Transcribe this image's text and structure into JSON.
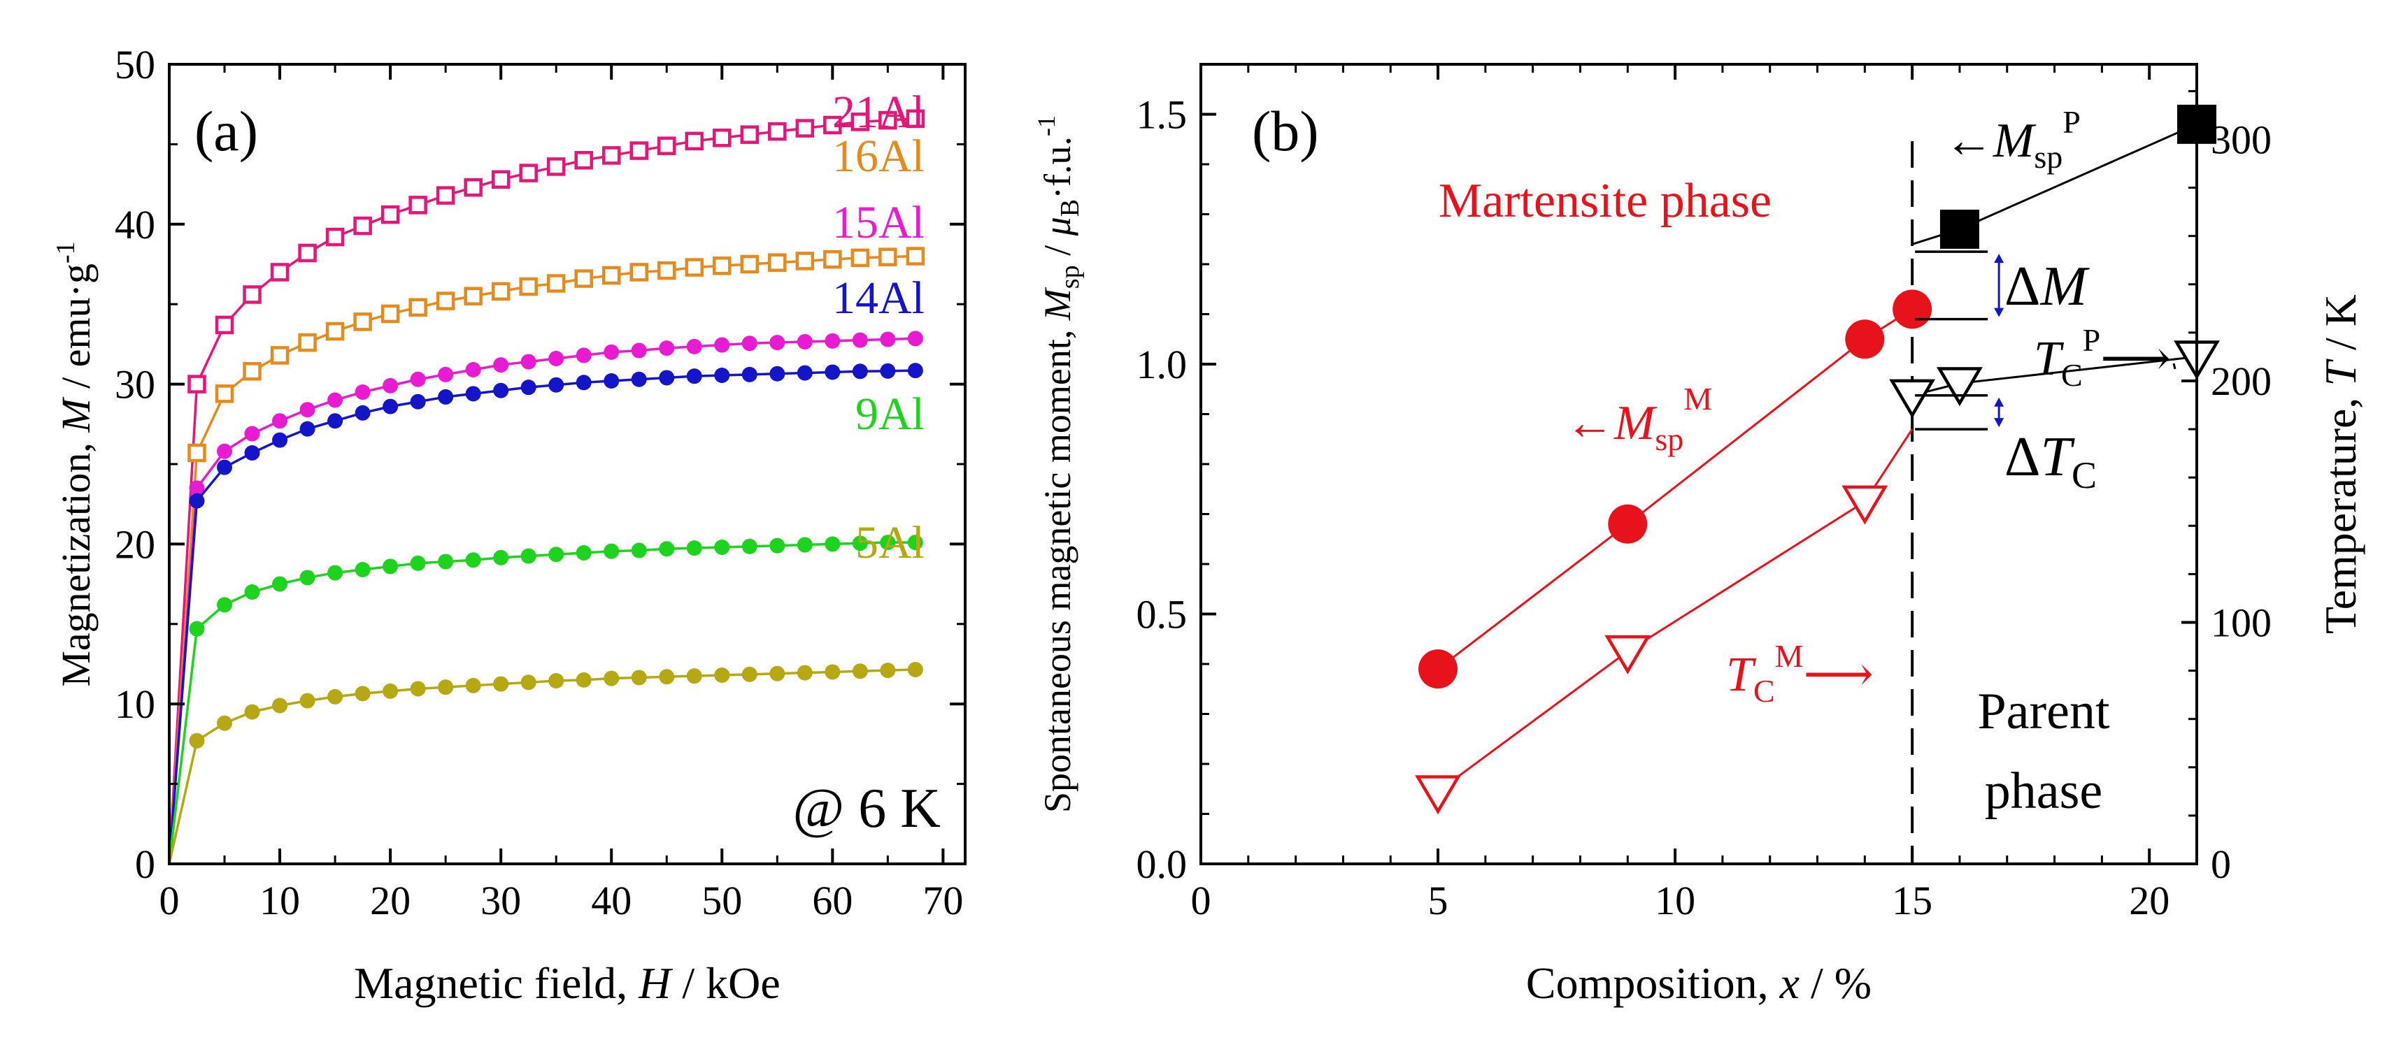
{
  "chart_data": [
    {
      "type": "scatter",
      "panel_label": "(a)",
      "xlabel": "Magnetic field, H / kOe",
      "xlabel_parts": {
        "pre": "Magnetic field, ",
        "var": "H",
        "post": " / kOe"
      },
      "ylabel": "Magnetization, M / emu·g-1",
      "ylabel_parts": {
        "pre": "Magnetization, ",
        "var": "M",
        "post": " / emu·g",
        "sup": "-1"
      },
      "xlim": [
        0,
        72
      ],
      "ylim": [
        0,
        50
      ],
      "xticks": [
        0,
        10,
        20,
        30,
        40,
        50,
        60,
        70
      ],
      "yticks": [
        0,
        10,
        20,
        30,
        40,
        50
      ],
      "annotation": "@ 6 K",
      "x": [
        0,
        2.5,
        5,
        7.5,
        10,
        12.5,
        15,
        17.5,
        20,
        22.5,
        25,
        27.5,
        30,
        32.5,
        35,
        37.5,
        40,
        42.5,
        45,
        47.5,
        50,
        52.5,
        55,
        57.5,
        60,
        62.5,
        65,
        67.5
      ],
      "series": [
        {
          "name": "21Al",
          "color": "#e6157a",
          "marker": "open-square",
          "values": [
            0,
            30.0,
            33.7,
            35.6,
            37.0,
            38.2,
            39.2,
            39.9,
            40.6,
            41.2,
            41.8,
            42.3,
            42.8,
            43.2,
            43.6,
            44.0,
            44.3,
            44.6,
            44.9,
            45.2,
            45.4,
            45.6,
            45.8,
            46.0,
            46.2,
            46.4,
            46.5,
            46.6
          ]
        },
        {
          "name": "16Al",
          "color": "#e58a1f",
          "marker": "open-square",
          "values": [
            0,
            25.7,
            29.4,
            30.8,
            31.8,
            32.6,
            33.3,
            33.9,
            34.4,
            34.8,
            35.2,
            35.5,
            35.8,
            36.1,
            36.3,
            36.6,
            36.8,
            37.0,
            37.1,
            37.3,
            37.4,
            37.5,
            37.6,
            37.7,
            37.8,
            37.9,
            37.95,
            38.0
          ]
        },
        {
          "name": "15Al",
          "color": "#e81ad2",
          "marker": "filled-circle",
          "values": [
            0,
            23.5,
            25.8,
            26.9,
            27.7,
            28.4,
            29.0,
            29.5,
            29.9,
            30.3,
            30.6,
            30.9,
            31.2,
            31.4,
            31.6,
            31.8,
            32.0,
            32.1,
            32.25,
            32.35,
            32.45,
            32.55,
            32.6,
            32.65,
            32.7,
            32.75,
            32.8,
            32.85
          ]
        },
        {
          "name": "14Al",
          "color": "#1414c8",
          "marker": "filled-circle",
          "values": [
            0,
            22.7,
            24.8,
            25.7,
            26.5,
            27.2,
            27.7,
            28.2,
            28.6,
            28.9,
            29.2,
            29.4,
            29.6,
            29.8,
            29.95,
            30.1,
            30.2,
            30.3,
            30.4,
            30.5,
            30.55,
            30.6,
            30.65,
            30.7,
            30.75,
            30.8,
            30.82,
            30.85
          ]
        },
        {
          "name": "9Al",
          "color": "#1ed31e",
          "marker": "filled-circle",
          "values": [
            0,
            14.7,
            16.2,
            17.0,
            17.5,
            17.9,
            18.2,
            18.4,
            18.6,
            18.8,
            18.9,
            19.0,
            19.15,
            19.25,
            19.35,
            19.45,
            19.55,
            19.6,
            19.7,
            19.75,
            19.8,
            19.85,
            19.9,
            19.95,
            20.0,
            20.05,
            20.1,
            20.1
          ]
        },
        {
          "name": "5Al",
          "color": "#b5a812",
          "marker": "filled-circle",
          "values": [
            0,
            7.7,
            8.8,
            9.5,
            9.9,
            10.2,
            10.45,
            10.65,
            10.8,
            10.95,
            11.05,
            11.15,
            11.25,
            11.35,
            11.45,
            11.5,
            11.6,
            11.65,
            11.7,
            11.75,
            11.8,
            11.85,
            11.9,
            11.95,
            12.0,
            12.05,
            12.1,
            12.15
          ]
        }
      ]
    },
    {
      "type": "scatter",
      "panel_label": "(b)",
      "xlabel": "Composition, x / %",
      "xlabel_parts": {
        "pre": "Composition, ",
        "var": "x",
        "post": " / %"
      },
      "ylabel": "Spontaneous magnetic moment, Msp / μB·f.u.-1",
      "ylabel_parts": {
        "pre": "Spontaneous magnetic moment, ",
        "var": "M",
        "sub": "sp",
        "mid": " / ",
        "var2": "μ",
        "sub2": "B",
        "post": "·f.u.",
        "sup": "-1"
      },
      "y2label": "Temperature, T / K",
      "y2label_parts": {
        "pre": "Temperature, ",
        "var": "T",
        "post": " / K"
      },
      "xlim": [
        0,
        21
      ],
      "ylim": [
        0,
        1.6
      ],
      "y2lim": [
        0,
        331.1
      ],
      "xticks": [
        0,
        5,
        10,
        15,
        20
      ],
      "yticks": [
        0.0,
        0.5,
        1.0,
        1.5
      ],
      "yticklabels": [
        "0.0",
        "0.5",
        "1.0",
        "1.5"
      ],
      "y2ticks": [
        0,
        100,
        200,
        300
      ],
      "phase_boundary_x": 15,
      "region_labels": {
        "martensite": "Martensite phase",
        "parent_line1": "Parent",
        "parent_line2": "phase"
      },
      "series": [
        {
          "name": "Msp M",
          "label_arrow": "←",
          "label_var": "M",
          "label_sub": "sp",
          "label_sup": "M",
          "color": "#e8121a",
          "marker": "filled-circle",
          "axis": "left",
          "x": [
            5,
            9,
            14,
            15
          ],
          "values": [
            0.39,
            0.68,
            1.05,
            1.11
          ]
        },
        {
          "name": "TC M",
          "label_var": "T",
          "label_sub": "C",
          "label_sup": "M",
          "label_arrow": "⟶",
          "color": "#e8121a",
          "marker": "open-triangle-down",
          "axis": "right",
          "x": [
            5,
            9,
            14,
            15
          ],
          "values": [
            30,
            88,
            150,
            180
          ]
        },
        {
          "name": "Msp P",
          "label_arrow": "←",
          "label_var": "M",
          "label_sub": "sp",
          "label_sup": "P",
          "color": "#000000",
          "marker": "filled-square",
          "axis": "left",
          "x": [
            15,
            16,
            21
          ],
          "values": [
            1.24,
            1.27,
            1.48
          ]
        },
        {
          "name": "TC P",
          "label_var": "T",
          "label_sub": "C",
          "label_sup": "P",
          "label_arrow": "⟶",
          "color": "#000000",
          "marker": "open-triangle-down",
          "axis": "right",
          "x": [
            15,
            16,
            21
          ],
          "values": [
            194,
            199,
            210
          ]
        }
      ],
      "annotations": {
        "delta_M": {
          "symbol": "Δ",
          "var": "M",
          "x": 15,
          "from": 1.09,
          "to": 1.225
        },
        "delta_TC": {
          "symbol": "Δ",
          "var": "T",
          "sub": "C",
          "x": 15,
          "from": 180,
          "to": 194
        }
      }
    }
  ]
}
